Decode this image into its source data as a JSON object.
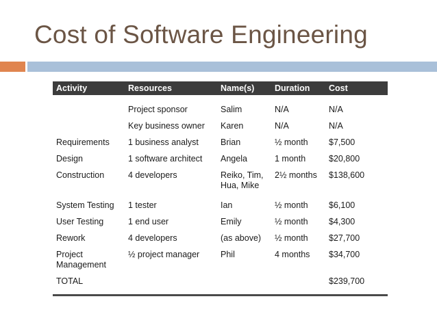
{
  "slide": {
    "title": "Cost of Software Engineering"
  },
  "table": {
    "headers": [
      "Activity",
      "Resources",
      "Name(s)",
      "Duration",
      "Cost"
    ],
    "rows": [
      {
        "activity": "",
        "resources": "Project sponsor",
        "names": "Salim",
        "duration": "N/A",
        "cost": "N/A"
      },
      {
        "activity": "",
        "resources": "Key business owner",
        "names": "Karen",
        "duration": "N/A",
        "cost": "N/A"
      },
      {
        "activity": "Requirements",
        "resources": "1 business analyst",
        "names": "Brian",
        "duration": "½ month",
        "cost": "$7,500"
      },
      {
        "activity": "Design",
        "resources": "1 software architect",
        "names": "Angela",
        "duration": "1 month",
        "cost": "$20,800"
      },
      {
        "activity": "Construction",
        "resources": "4 developers",
        "names": "Reiko, Tim, Hua, Mike",
        "duration": "2½ months",
        "cost": "$138,600"
      },
      {
        "activity": "System Testing",
        "resources": "1 tester",
        "names": "Ian",
        "duration": "½ month",
        "cost": "$6,100"
      },
      {
        "activity": "User Testing",
        "resources": "1 end user",
        "names": "Emily",
        "duration": "½ month",
        "cost": "$4,300"
      },
      {
        "activity": "Rework",
        "resources": "4 developers",
        "names": "(as above)",
        "duration": "½ month",
        "cost": "$27,700"
      },
      {
        "activity": "Project Management",
        "resources": "½ project manager",
        "names": "Phil",
        "duration": "4 months",
        "cost": "$34,700"
      },
      {
        "activity": "TOTAL",
        "resources": "",
        "names": "",
        "duration": "",
        "cost": "$239,700"
      }
    ]
  },
  "colors": {
    "title": "#6b5545",
    "accent_orange": "#e0854f",
    "accent_blue": "#a9c0d9",
    "header_bg": "#3c3c3c"
  }
}
